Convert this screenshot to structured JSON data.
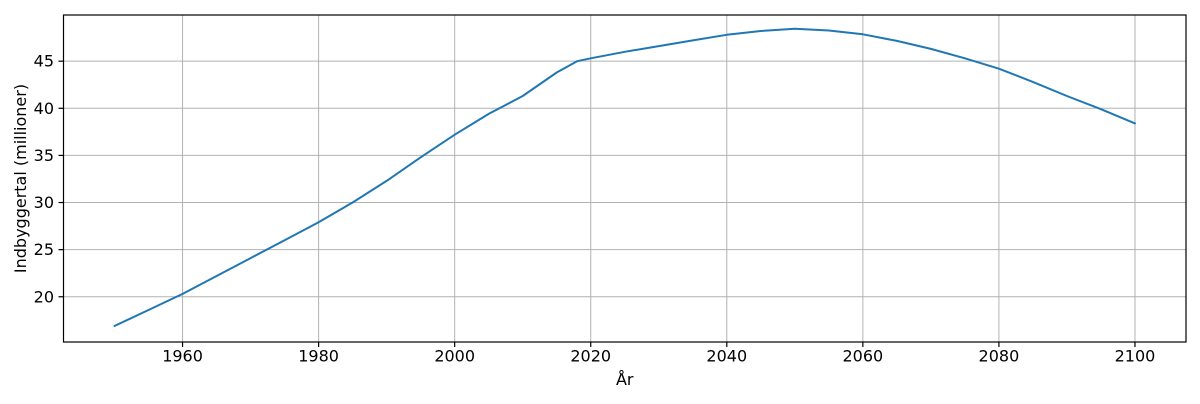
{
  "chart_data": {
    "type": "line",
    "title": "",
    "xlabel": "År",
    "ylabel": "Indbyggertal (millioner)",
    "x": [
      1950,
      1955,
      1960,
      1965,
      1970,
      1975,
      1980,
      1985,
      1990,
      1995,
      2000,
      2005,
      2010,
      2015,
      2018,
      2020,
      2025,
      2030,
      2035,
      2040,
      2045,
      2050,
      2055,
      2060,
      2065,
      2070,
      2075,
      2080,
      2085,
      2090,
      2095,
      2100
    ],
    "series": [
      {
        "name": "Indbyggertal",
        "values": [
          16.9,
          18.6,
          20.3,
          22.2,
          24.1,
          26.0,
          27.9,
          30.0,
          32.3,
          34.8,
          37.2,
          39.4,
          41.3,
          43.8,
          45.0,
          45.3,
          46.0,
          46.6,
          47.2,
          47.8,
          48.2,
          48.45,
          48.25,
          47.85,
          47.15,
          46.3,
          45.3,
          44.2,
          42.8,
          41.3,
          39.9,
          38.4
        ]
      }
    ],
    "xlim": [
      1942.5,
      2107.5
    ],
    "ylim": [
      15.2,
      49.9
    ],
    "xticks": {
      "values": [
        1960,
        1980,
        2000,
        2020,
        2040,
        2060,
        2080,
        2100
      ],
      "labels": [
        "1960",
        "1980",
        "2000",
        "2020",
        "2040",
        "2060",
        "2080",
        "2100"
      ]
    },
    "yticks": {
      "values": [
        20,
        25,
        30,
        35,
        40,
        45
      ],
      "labels": [
        "20",
        "25",
        "30",
        "35",
        "40",
        "45"
      ]
    },
    "grid": true,
    "legend": null,
    "colors": {
      "line": "#1f77b4",
      "grid": "#b2b2b2",
      "spine": "#000000",
      "text": "#000000",
      "background": "#ffffff"
    }
  }
}
